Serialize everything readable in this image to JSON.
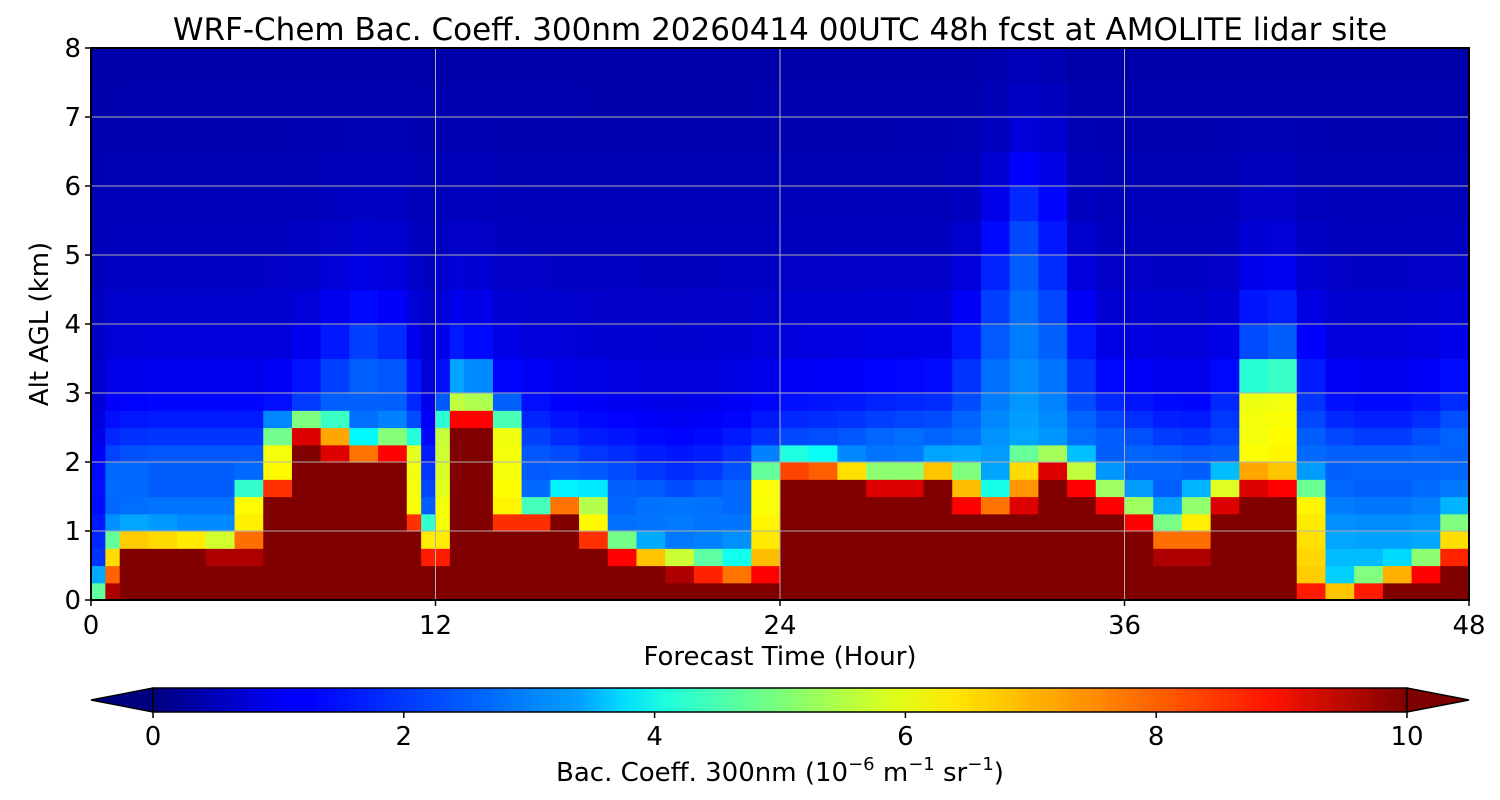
{
  "chart_data": {
    "type": "heatmap",
    "title": "WRF-Chem Bac. Coeff. 300nm  20260414 00UTC 48h fcst at AMOLITE lidar site",
    "xlabel": "Forecast Time (Hour)",
    "ylabel": "Alt AGL (km)",
    "xlim": [
      0,
      48
    ],
    "ylim": [
      0,
      8
    ],
    "xticks": [
      0,
      12,
      24,
      36,
      48
    ],
    "yticks": [
      0,
      1,
      2,
      3,
      4,
      5,
      6,
      7,
      8
    ],
    "grid": true,
    "colormap": "jet",
    "colorbar": {
      "label_main": "Bac. Coeff. 300nm  (10",
      "label_exp1": "−6",
      "label_mid": " m",
      "label_exp2": "−1",
      "label_mid2": " sr",
      "label_exp3": "−1",
      "label_end": ")",
      "range": [
        0,
        10
      ],
      "ticks": [
        0,
        2,
        4,
        6,
        8,
        10
      ],
      "extend": "both",
      "placement": "bottom"
    },
    "contour_levels": [
      0.0,
      1.2,
      2.0,
      3.2,
      4.4,
      6.0,
      7.5,
      8.6,
      10.0
    ],
    "grid_values": {
      "hours": [
        0,
        0.5,
        1,
        2,
        3,
        4,
        5,
        6,
        7,
        8,
        9,
        10,
        11,
        11.5,
        12,
        12.5,
        13,
        14,
        15,
        16,
        17,
        18,
        19,
        20,
        21,
        22,
        23,
        24,
        25,
        26,
        27,
        28,
        29,
        30,
        31,
        32,
        33,
        34,
        35,
        36,
        37,
        38,
        39,
        40,
        41,
        42,
        43,
        44,
        45,
        46,
        47,
        48
      ],
      "altitudes_km": [
        0,
        0.25,
        0.5,
        0.75,
        1,
        1.25,
        1.5,
        1.75,
        2,
        2.25,
        2.5,
        2.75,
        3,
        3.5,
        4,
        4.5,
        5,
        5.5,
        6,
        6.5,
        7,
        7.5,
        8
      ],
      "surface_layer_top_km": [
        0,
        0.2,
        0.8,
        0.8,
        0.75,
        0.75,
        0.7,
        1.5,
        2.4,
        2.5,
        2.15,
        2.1,
        2.3,
        1.0,
        0.55,
        2.6,
        2.9,
        2.6,
        1.0,
        1.25,
        1.45,
        0.75,
        0.6,
        0.5,
        0.45,
        0.4,
        0.35,
        1.85,
        1.95,
        1.8,
        1.75,
        1.65,
        1.75,
        1.85,
        1.35,
        1.4,
        2.0,
        1.9,
        1.6,
        1.35,
        1.1,
        0.7,
        1.4,
        1.65,
        3.3,
        1.6,
        0.05,
        0.05,
        0.3,
        0.35,
        0.5,
        1.1
      ],
      "background_low_km": [
        0,
        1.6,
        1.7,
        1.8,
        1.8,
        1.8,
        1.8,
        1.8,
        2.0,
        2.6,
        3.2,
        3.4,
        2.8,
        1.5,
        1.0,
        2.8,
        3.1,
        2.3,
        2.0,
        1.8,
        1.6,
        1.5,
        1.4,
        1.2,
        1.2,
        1.4,
        1.6,
        1.9,
        2.0,
        2.0,
        2.1,
        2.2,
        2.2,
        2.3,
        3.5,
        5.0,
        5.6,
        3.5,
        2.3,
        2.1,
        1.9,
        1.8,
        1.8,
        2.5,
        3.9,
        3.0,
        2.0,
        1.9,
        1.8,
        1.9,
        2.1,
        2.4
      ]
    }
  }
}
